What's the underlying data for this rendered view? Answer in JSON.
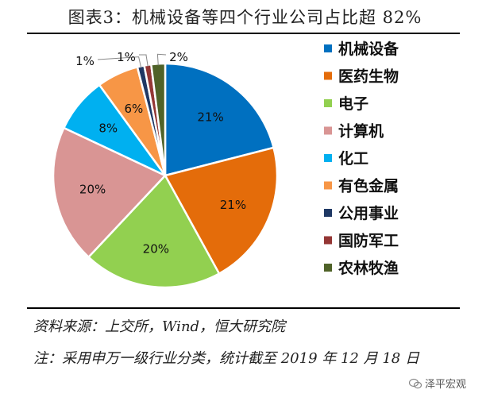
{
  "title": "图表3：机械设备等四个行业公司占比超 82%",
  "source": "资料来源：上交所，Wind，恒大研究院",
  "note": "注：采用申万一级行业分类，统计截至 2019 年 12 月 18 日",
  "watermark": "泽平宏观",
  "chart_data": {
    "type": "pie",
    "categories": [
      "机械设备",
      "医药生物",
      "电子",
      "计算机",
      "化工",
      "有色金属",
      "公用事业",
      "国防军工",
      "农林牧渔"
    ],
    "values": [
      21,
      21,
      20,
      20,
      8,
      6,
      1,
      1,
      2
    ],
    "labels": [
      "21%",
      "21%",
      "20%",
      "20%",
      "8%",
      "6%",
      "1%",
      "1%",
      "2%"
    ],
    "colors": [
      "#0070C0",
      "#E46C0A",
      "#92D050",
      "#D99594",
      "#00B0F0",
      "#F79646",
      "#1F3864",
      "#943634",
      "#4F6228"
    ],
    "legend_position": "right"
  }
}
